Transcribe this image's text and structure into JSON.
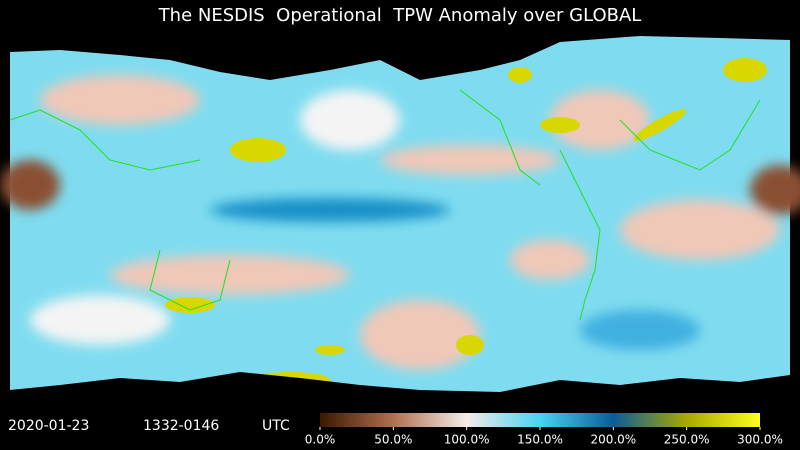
{
  "title": "The NESDIS  Operational  TPW Anomaly over GLOBAL",
  "footer": {
    "date": "2020-01-23",
    "time": "1332-0146",
    "zone": "UTC"
  },
  "colorbar": {
    "range": [
      0,
      300
    ],
    "colors": [
      "#3a1800",
      "#b07050",
      "#f4ece8",
      "#48d4f0",
      "#0a5c98",
      "#a8a800",
      "#ffff20"
    ],
    "ticks": [
      {
        "value": 0,
        "label": "0.0%"
      },
      {
        "value": 50,
        "label": "50.0%"
      },
      {
        "value": 100,
        "label": "100.0%"
      },
      {
        "value": 150,
        "label": "150.0%"
      },
      {
        "value": 200,
        "label": "200.0%"
      },
      {
        "value": 250,
        "label": "250.0%"
      },
      {
        "value": 300,
        "label": "300.0%"
      }
    ]
  }
}
